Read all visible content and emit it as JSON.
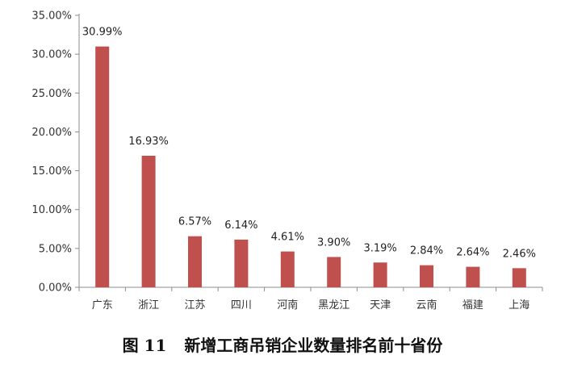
{
  "chart_data": {
    "type": "bar",
    "categories": [
      "广东",
      "浙江",
      "江苏",
      "四川",
      "河南",
      "黑龙江",
      "天津",
      "云南",
      "福建",
      "上海"
    ],
    "values": [
      30.99,
      16.93,
      6.57,
      6.14,
      4.61,
      3.9,
      3.19,
      2.84,
      2.64,
      2.46
    ],
    "data_labels": [
      "30.99%",
      "16.93%",
      "6.57%",
      "6.14%",
      "4.61%",
      "3.90%",
      "3.19%",
      "2.84%",
      "2.64%",
      "2.46%"
    ],
    "yticks": [
      "0.00%",
      "5.00%",
      "10.00%",
      "15.00%",
      "20.00%",
      "25.00%",
      "30.00%",
      "35.00%"
    ],
    "ylim": [
      0,
      35
    ],
    "grid": false,
    "bar_color": "#c0504d",
    "title": "新增工商吊销企业数量排名前十省份"
  },
  "caption": {
    "number": "图 11",
    "title": "新增工商吊销企业数量排名前十省份"
  }
}
